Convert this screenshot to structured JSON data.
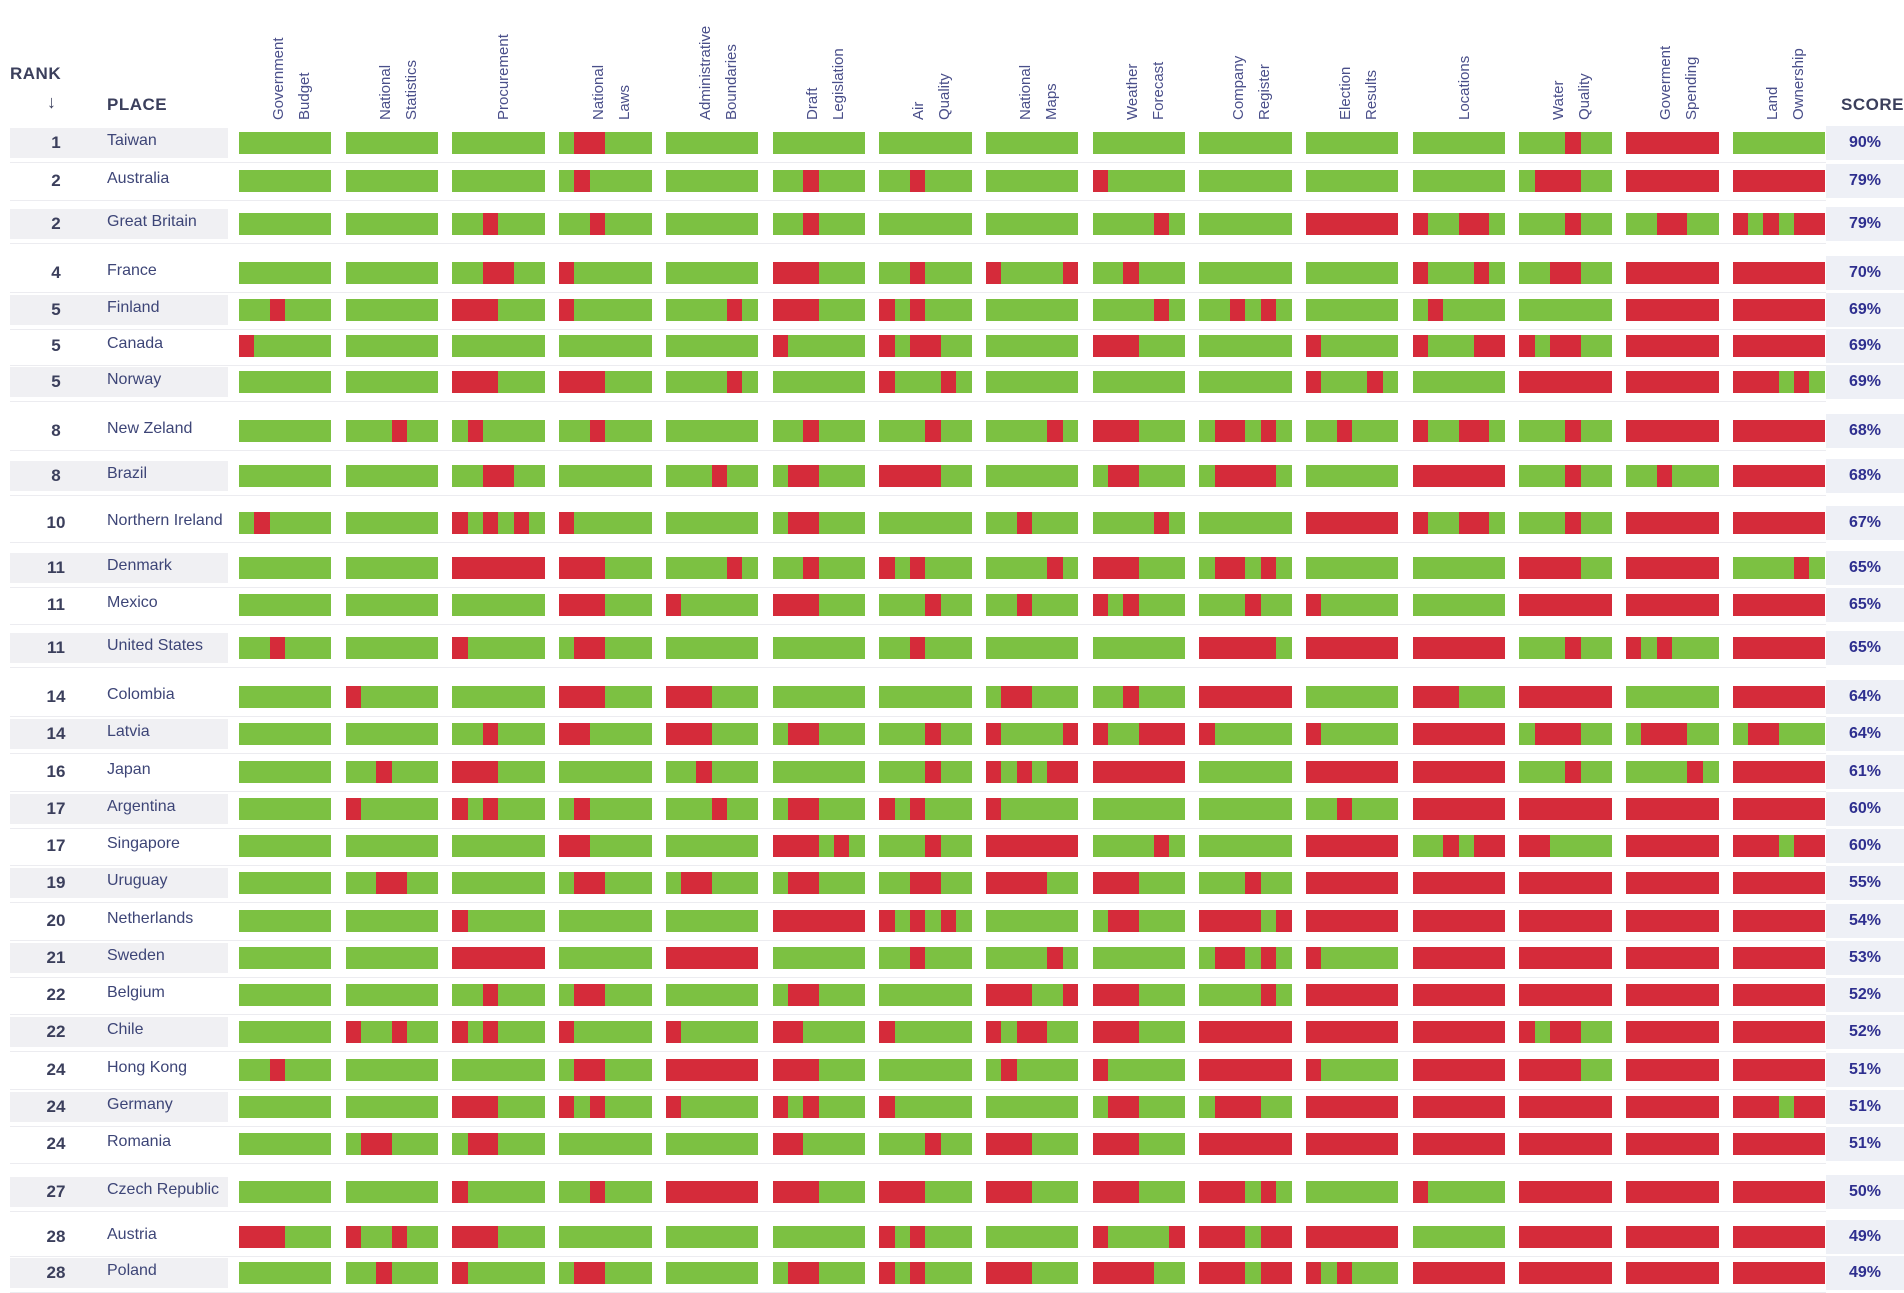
{
  "chart_data": {
    "type": "table",
    "headers": {
      "rank": "RANK",
      "sort_arrow": "↓",
      "place": "PLACE",
      "score": "SCORE"
    },
    "columns": [
      [
        "Government",
        "Budget"
      ],
      [
        "National",
        "Statistics"
      ],
      [
        "Procurement"
      ],
      [
        "National",
        "Laws"
      ],
      [
        "Administrative",
        "Boundaries"
      ],
      [
        "Draft",
        "Legislation"
      ],
      [
        "Air",
        "Quality"
      ],
      [
        "National",
        "Maps"
      ],
      [
        "Weather",
        "Forecast"
      ],
      [
        "Company",
        "Register"
      ],
      [
        "Election",
        "Results"
      ],
      [
        "Locations"
      ],
      [
        "Water",
        "Quality"
      ],
      [
        "Goverment",
        "Spending"
      ],
      [
        "Land",
        "Ownership"
      ]
    ],
    "colors": {
      "pass": "#7cc142",
      "fail": "#d52b3a"
    },
    "rows": [
      {
        "rank": "1",
        "place": "Taiwan",
        "score": "90%",
        "cells": [
          "gggggg",
          "gggggg",
          "gggggg",
          "grrggg",
          "gggggg",
          "gggggg",
          "gggggg",
          "gggggg",
          "gggggg",
          "gggggg",
          "gggggg",
          "gggggg",
          "gggrgg",
          "rrrrrr",
          "gggggg"
        ]
      },
      {
        "rank": "2",
        "place": "Australia",
        "score": "79%",
        "cells": [
          "gggggg",
          "gggggg",
          "gggggg",
          "grgggg",
          "gggggg",
          "ggrggg",
          "ggrggg",
          "gggggg",
          "rggggg",
          "gggggg",
          "gggggg",
          "gggggg",
          "grrrgg",
          "rrrrrr",
          "rrrrrr"
        ]
      },
      {
        "rank": "2",
        "place": "Great Britain",
        "score": "79%",
        "cells": [
          "gggggg",
          "gggggg",
          "ggrggg",
          "ggrggg",
          "gggggg",
          "ggrggg",
          "gggggg",
          "gggggg",
          "ggggrg",
          "gggggg",
          "rrrrrr",
          "rggrrg",
          "gggrgg",
          "ggrrgg",
          "rgrgrr"
        ]
      },
      {
        "rank": "4",
        "place": "France",
        "score": "70%",
        "cells": [
          "gggggg",
          "gggggg",
          "ggrrgg",
          "rggggg",
          "gggggg",
          "rrrggg",
          "ggrggg",
          "rggggr",
          "ggrggg",
          "gggggg",
          "gggggg",
          "rgggrg",
          "ggrrgg",
          "rrrrrr",
          "rrrrrr"
        ]
      },
      {
        "rank": "5",
        "place": "Finland",
        "score": "69%",
        "cells": [
          "ggrggg",
          "gggggg",
          "rrrggg",
          "rggggg",
          "ggggrg",
          "rrrggg",
          "rgrggg",
          "gggggg",
          "ggggrg",
          "ggrgrg",
          "gggggg",
          "grgggg",
          "gggggg",
          "rrrrrr",
          "rrrrrr"
        ]
      },
      {
        "rank": "5",
        "place": "Canada",
        "score": "69%",
        "cells": [
          "rggggg",
          "gggggg",
          "gggggg",
          "gggggg",
          "gggggg",
          "rggggg",
          "rgrrgg",
          "gggggg",
          "rrrggg",
          "gggggg",
          "rggggg",
          "rgggrr",
          "rgrrgg",
          "rrrrrr",
          "rrrrrr"
        ]
      },
      {
        "rank": "5",
        "place": "Norway",
        "score": "69%",
        "cells": [
          "gggggg",
          "gggggg",
          "rrrggg",
          "rrrggg",
          "ggggrg",
          "gggggg",
          "rgggrg",
          "gggggg",
          "gggggg",
          "gggggg",
          "rgggrg",
          "gggggg",
          "rrrrrr",
          "rrrrrr",
          "rrrgrg"
        ]
      },
      {
        "rank": "8",
        "place": "New Zeland",
        "score": "68%",
        "cells": [
          "gggggg",
          "gggrgg",
          "grgggg",
          "ggrggg",
          "gggggg",
          "ggrggg",
          "gggrgg",
          "ggggrg",
          "rrrggg",
          "grrgrg",
          "ggrggg",
          "rggrrg",
          "gggrgg",
          "rrrrrr",
          "rrrrrr"
        ]
      },
      {
        "rank": "8",
        "place": "Brazil",
        "score": "68%",
        "cells": [
          "gggggg",
          "gggggg",
          "ggrrgg",
          "gggggg",
          "gggrgg",
          "grrggg",
          "rrrrgg",
          "gggggg",
          "grrggg",
          "grrrrg",
          "gggggg",
          "rrrrrr",
          "gggrgg",
          "ggrggg",
          "rrrrrr"
        ]
      },
      {
        "rank": "10",
        "place": "Northern Ireland",
        "score": "67%",
        "cells": [
          "grgggg",
          "gggggg",
          "rgrgrg",
          "rggggg",
          "gggggg",
          "grrggg",
          "gggggg",
          "ggrggg",
          "ggggrg",
          "gggggg",
          "rrrrrr",
          "rggrrg",
          "gggrgg",
          "rrrrrr",
          "rrrrrr"
        ]
      },
      {
        "rank": "11",
        "place": "Denmark",
        "score": "65%",
        "cells": [
          "gggggg",
          "gggggg",
          "rrrrrr",
          "rrrggg",
          "ggggrg",
          "ggrggg",
          "rgrggg",
          "ggggrg",
          "rrrggg",
          "grrgrg",
          "gggggg",
          "gggggg",
          "rrrrgg",
          "rrrrrr",
          "ggggrg"
        ]
      },
      {
        "rank": "11",
        "place": "Mexico",
        "score": "65%",
        "cells": [
          "gggggg",
          "gggggg",
          "gggggg",
          "rrrggg",
          "rggggg",
          "rrrggg",
          "gggrgg",
          "ggrggg",
          "rgrggg",
          "gggrgg",
          "rggggg",
          "gggggg",
          "rrrrrr",
          "rrrrrr",
          "rrrrrr"
        ]
      },
      {
        "rank": "11",
        "place": "United States",
        "score": "65%",
        "cells": [
          "ggrggg",
          "gggggg",
          "rggggg",
          "grrggg",
          "gggggg",
          "gggggg",
          "ggrggg",
          "gggggg",
          "gggggg",
          "rrrrrg",
          "rrrrrr",
          "rrrrrr",
          "gggrgg",
          "rgrggg",
          "rrrrrr"
        ]
      },
      {
        "rank": "14",
        "place": "Colombia",
        "score": "64%",
        "cells": [
          "gggggg",
          "rggggg",
          "gggggg",
          "rrrggg",
          "rrrggg",
          "gggggg",
          "gggggg",
          "grrggg",
          "ggrggg",
          "rrrrrr",
          "gggggg",
          "rrrggg",
          "rrrrrr",
          "gggggg",
          "rrrrrr"
        ]
      },
      {
        "rank": "14",
        "place": "Latvia",
        "score": "64%",
        "cells": [
          "gggggg",
          "gggggg",
          "ggrggg",
          "rrgggg",
          "rrrggg",
          "grrggg",
          "gggrgg",
          "rggggr",
          "rggrrr",
          "rggggg",
          "rggggg",
          "rrrrrr",
          "grrrgg",
          "grrrgg",
          "grrggg"
        ]
      },
      {
        "rank": "16",
        "place": "Japan",
        "score": "61%",
        "cells": [
          "gggggg",
          "ggrggg",
          "rrrggg",
          "gggggg",
          "ggrggg",
          "gggggg",
          "gggrgg",
          "rgrgrr",
          "rrrrrr",
          "gggggg",
          "rrrrrr",
          "rrrrrr",
          "gggrgg",
          "ggggrg",
          "rrrrrr"
        ]
      },
      {
        "rank": "17",
        "place": "Argentina",
        "score": "60%",
        "cells": [
          "gggggg",
          "rggggg",
          "rgrggg",
          "grgggg",
          "gggrgg",
          "grrggg",
          "rgrggg",
          "rggggg",
          "gggggg",
          "gggggg",
          "ggrggg",
          "rrrrrr",
          "rrrrrr",
          "rrrrrr",
          "rrrrrr"
        ]
      },
      {
        "rank": "17",
        "place": "Singapore",
        "score": "60%",
        "cells": [
          "gggggg",
          "gggggg",
          "gggggg",
          "rrgggg",
          "gggggg",
          "rrrgrg",
          "gggrgg",
          "rrrrrr",
          "ggggrg",
          "gggggg",
          "rrrrrr",
          "ggrgrr",
          "rrgggg",
          "rrrrrr",
          "rrrgrr"
        ]
      },
      {
        "rank": "19",
        "place": "Uruguay",
        "score": "55%",
        "cells": [
          "gggggg",
          "ggrrgg",
          "gggggg",
          "grrggg",
          "grrggg",
          "grrggg",
          "ggrrgg",
          "rrrrgg",
          "rrrggg",
          "gggrgg",
          "rrrrrr",
          "rrrrrr",
          "rrrrrr",
          "rrrrrr",
          "rrrrrr"
        ]
      },
      {
        "rank": "20",
        "place": "Netherlands",
        "score": "54%",
        "cells": [
          "gggggg",
          "gggggg",
          "rggggg",
          "gggggg",
          "gggggg",
          "rrrrrr",
          "rgrgrg",
          "gggggg",
          "grrggg",
          "rrrrgr",
          "rrrrrr",
          "rrrrrr",
          "rrrrrr",
          "rrrrrr",
          "rrrrrr"
        ]
      },
      {
        "rank": "21",
        "place": "Sweden",
        "score": "53%",
        "cells": [
          "gggggg",
          "gggggg",
          "rrrrrr",
          "gggggg",
          "rrrrrr",
          "gggggg",
          "ggrggg",
          "ggggrg",
          "gggggg",
          "grrgrg",
          "rggggg",
          "rrrrrr",
          "rrrrrr",
          "rrrrrr",
          "rrrrrr"
        ]
      },
      {
        "rank": "22",
        "place": "Belgium",
        "score": "52%",
        "cells": [
          "gggggg",
          "gggggg",
          "ggrggg",
          "grrggg",
          "gggggg",
          "grrggg",
          "gggggg",
          "rrrggr",
          "rrrggg",
          "ggggrg",
          "rrrrrr",
          "rrrrrr",
          "rrrrrr",
          "rrrrrr",
          "rrrrrr"
        ]
      },
      {
        "rank": "22",
        "place": "Chile",
        "score": "52%",
        "cells": [
          "gggggg",
          "rggrgg",
          "rgrggg",
          "rggggg",
          "rggggg",
          "rrgggg",
          "rggggg",
          "rgrrgg",
          "rrrggg",
          "rrrrrr",
          "rrrrrr",
          "rrrrrr",
          "rgrrgg",
          "rrrrrr",
          "rrrrrr"
        ]
      },
      {
        "rank": "24",
        "place": "Hong Kong",
        "score": "51%",
        "cells": [
          "ggrggg",
          "gggggg",
          "gggggg",
          "grrggg",
          "rrrrrr",
          "rrrggg",
          "gggggg",
          "grgggg",
          "rggggg",
          "rrrrrr",
          "rggggg",
          "rrrrrr",
          "rrrrgg",
          "rrrrrr",
          "rrrrrr"
        ]
      },
      {
        "rank": "24",
        "place": "Germany",
        "score": "51%",
        "cells": [
          "gggggg",
          "gggggg",
          "rrrggg",
          "rgrggg",
          "rggggg",
          "rgrggg",
          "rggggg",
          "gggggg",
          "grrggg",
          "grrrgg",
          "rrrrrr",
          "rrrrrr",
          "rrrrrr",
          "rrrrrr",
          "rrrgrr"
        ]
      },
      {
        "rank": "24",
        "place": "Romania",
        "score": "51%",
        "cells": [
          "gggggg",
          "grrggg",
          "grrggg",
          "gggggg",
          "gggggg",
          "rrgggg",
          "gggrgg",
          "rrrggg",
          "rrrggg",
          "rrrrrr",
          "rrrrrr",
          "rrrrrr",
          "rrrrrr",
          "rrrrrr",
          "rrrrrr"
        ]
      },
      {
        "rank": "27",
        "place": "Czech Republic",
        "score": "50%",
        "cells": [
          "gggggg",
          "gggggg",
          "rggggg",
          "ggrggg",
          "rrrrrr",
          "rrrggg",
          "rrrggg",
          "rrrggg",
          "rrrggg",
          "rrrgrg",
          "gggggg",
          "rggggg",
          "rrrrrr",
          "rrrrrr",
          "rrrrrr"
        ]
      },
      {
        "rank": "28",
        "place": "Austria",
        "score": "49%",
        "cells": [
          "rrrggg",
          "rggrgg",
          "rrrggg",
          "gggggg",
          "gggggg",
          "gggggg",
          "rgrggg",
          "gggggg",
          "rggggr",
          "rrrgrr",
          "rrrrrr",
          "gggggg",
          "rrrrrr",
          "rrrrrr",
          "rrrrrr"
        ]
      },
      {
        "rank": "28",
        "place": "Poland",
        "score": "49%",
        "cells": [
          "gggggg",
          "ggrggg",
          "rggggg",
          "grrggg",
          "gggggg",
          "grrggg",
          "rgrggg",
          "rrrggg",
          "rrrrgg",
          "rrrgrr",
          "rgrggg",
          "rrrrrr",
          "rrrrrr",
          "rrrrrr",
          "rrrrrr"
        ]
      }
    ]
  }
}
